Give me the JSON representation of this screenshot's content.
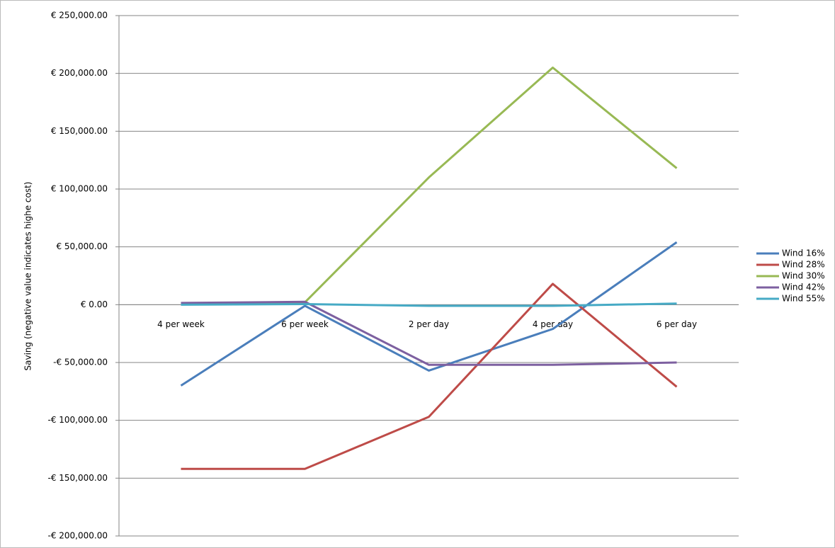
{
  "chart_data": {
    "type": "line",
    "y_label": "Saving (negative value indicates highe cost)",
    "categories": [
      "4 per week",
      "6 per week",
      "2 per day",
      "4 per day",
      "6 per day"
    ],
    "series": [
      {
        "name": "Wind 16%",
        "color": "#4a7ebb",
        "values": [
          -70000,
          -1000,
          -57000,
          -21000,
          54000
        ]
      },
      {
        "name": "Wind 28%",
        "color": "#be4b48",
        "values": [
          -142000,
          -142000,
          -97000,
          18000,
          -71000
        ]
      },
      {
        "name": "Wind 30%",
        "color": "#98b954",
        "values": [
          1000,
          2000,
          110000,
          205000,
          118000
        ]
      },
      {
        "name": "Wind 42%",
        "color": "#7d60a0",
        "values": [
          1500,
          2500,
          -52000,
          -52000,
          -50000
        ]
      },
      {
        "name": "Wind 55%",
        "color": "#46aac5",
        "values": [
          0,
          500,
          -1000,
          -1000,
          1000
        ]
      }
    ],
    "ylim": [
      -200000,
      250000
    ],
    "yticks": [
      {
        "value": -200000,
        "label": "-€ 200,000.00"
      },
      {
        "value": -150000,
        "label": "-€ 150,000.00"
      },
      {
        "value": -100000,
        "label": "-€ 100,000.00"
      },
      {
        "value": -50000,
        "label": "-€ 50,000.00"
      },
      {
        "value": 0,
        "label": "€ 0.00"
      },
      {
        "value": 50000,
        "label": "€ 50,000.00"
      },
      {
        "value": 100000,
        "label": "€ 100,000.00"
      },
      {
        "value": 150000,
        "label": "€ 150,000.00"
      },
      {
        "value": 200000,
        "label": "€ 200,000.00"
      },
      {
        "value": 250000,
        "label": "€ 250,000.00"
      }
    ],
    "grid": true,
    "legend": "right"
  }
}
